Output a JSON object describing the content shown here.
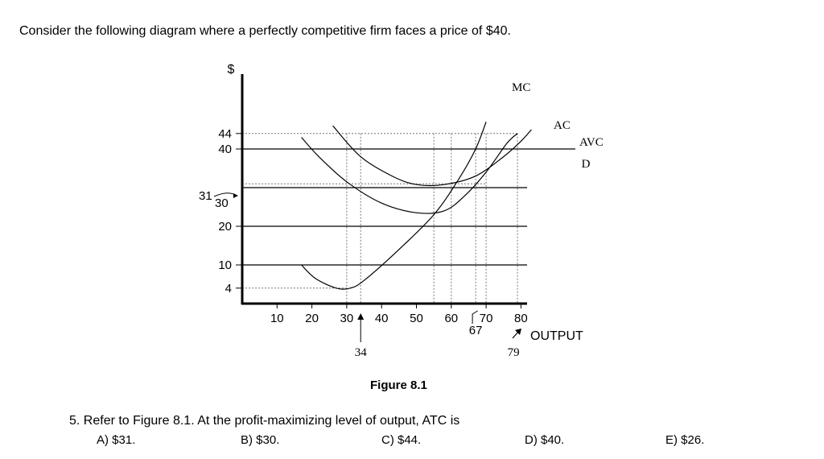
{
  "intro": "Consider the following diagram where a perfectly competitive firm faces a price of $40.",
  "chart_data": {
    "type": "line",
    "title": "",
    "caption": "Figure 8.1",
    "ylabel": "$",
    "xlabel": "OUTPUT",
    "xlim": [
      0,
      95
    ],
    "ylim": [
      0,
      48
    ],
    "x_ticks": [
      10,
      20,
      30,
      40,
      50,
      60,
      70,
      80
    ],
    "y_ticks": [
      4,
      10,
      20,
      40,
      44
    ],
    "y_annotations": [
      {
        "label": "31",
        "value": 31
      },
      {
        "label": "30",
        "value": 30
      }
    ],
    "x_annotations": [
      {
        "label": "34",
        "value": 34
      },
      {
        "label": "67",
        "value": 67
      },
      {
        "label": "79",
        "value": 79
      }
    ],
    "horizontal_lines": [
      {
        "name": "D",
        "value": 40
      },
      {
        "value": 30
      },
      {
        "value": 20
      },
      {
        "value": 10
      }
    ],
    "series": [
      {
        "name": "MC",
        "points": [
          [
            17,
            10
          ],
          [
            21,
            6.5
          ],
          [
            27,
            4
          ],
          [
            31,
            4
          ],
          [
            35,
            6
          ],
          [
            45,
            14
          ],
          [
            55,
            23
          ],
          [
            62,
            32
          ],
          [
            67,
            40
          ],
          [
            70,
            47
          ]
        ]
      },
      {
        "name": "AC",
        "points": [
          [
            17,
            43
          ],
          [
            22,
            38
          ],
          [
            30,
            31.5
          ],
          [
            40,
            26
          ],
          [
            50,
            23.5
          ],
          [
            58,
            24
          ],
          [
            64,
            28
          ],
          [
            70,
            34
          ],
          [
            76,
            41.5
          ],
          [
            79,
            44
          ]
        ]
      },
      {
        "name": "AVC",
        "points": [
          [
            26,
            46
          ],
          [
            34,
            38
          ],
          [
            43,
            33
          ],
          [
            50,
            30.8
          ],
          [
            58,
            30.8
          ],
          [
            67,
            33
          ],
          [
            75,
            38
          ],
          [
            80,
            42
          ],
          [
            83,
            45
          ]
        ]
      }
    ],
    "series_labels": {
      "mc": "MC",
      "ac": "AC",
      "avc": "AVC",
      "d": "D"
    }
  },
  "question": {
    "text": "5. Refer to Figure 8.1.  At the profit-maximizing level of output, ATC is",
    "options": [
      "A) $31.",
      "B) $30.",
      "C) $44.",
      "D) $40.",
      "E) $26."
    ]
  }
}
